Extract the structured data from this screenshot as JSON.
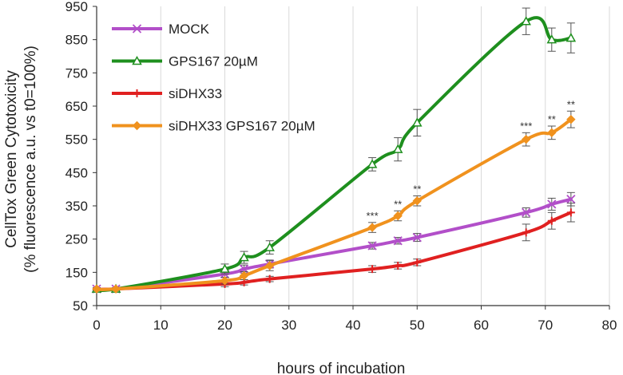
{
  "chart_data": {
    "type": "line",
    "title": "",
    "xlabel": "hours of incubation",
    "ylabel_lines": [
      "CellTox Green Cytotoxicity",
      "(% fluorescence a.u. vs t0=100%)"
    ],
    "xlim": [
      0,
      80
    ],
    "ylim": [
      50,
      950
    ],
    "x_ticks": [
      0,
      10,
      20,
      30,
      40,
      50,
      60,
      70,
      80
    ],
    "y_ticks": [
      50,
      150,
      250,
      350,
      450,
      550,
      650,
      750,
      850,
      950
    ],
    "grid": "vertical",
    "legend": "top-left",
    "series": [
      {
        "name": "MOCK",
        "color": "#b24fc9",
        "marker": "x",
        "points": [
          [
            0,
            100
          ],
          [
            3,
            100
          ],
          [
            20,
            145
          ],
          [
            23,
            160
          ],
          [
            27,
            175
          ],
          [
            43,
            230
          ],
          [
            47,
            245
          ],
          [
            50,
            255
          ],
          [
            67,
            330
          ],
          [
            71,
            355
          ],
          [
            74,
            370
          ]
        ],
        "errors": [
          4,
          4,
          10,
          12,
          12,
          10,
          10,
          12,
          14,
          18,
          20
        ]
      },
      {
        "name": "GPS167 20µM",
        "color": "#1e8f1e",
        "marker": "triangle",
        "points": [
          [
            0,
            100
          ],
          [
            3,
            100
          ],
          [
            20,
            160
          ],
          [
            23,
            195
          ],
          [
            27,
            225
          ],
          [
            43,
            475
          ],
          [
            47,
            520
          ],
          [
            50,
            600
          ],
          [
            67,
            905
          ],
          [
            71,
            850
          ],
          [
            74,
            855
          ]
        ],
        "errors": [
          4,
          4,
          15,
          18,
          20,
          20,
          35,
          40,
          40,
          35,
          45
        ]
      },
      {
        "name": "siDHX33",
        "color": "#e02020",
        "marker": "plus",
        "points": [
          [
            0,
            100
          ],
          [
            3,
            100
          ],
          [
            20,
            115
          ],
          [
            23,
            120
          ],
          [
            27,
            130
          ],
          [
            43,
            160
          ],
          [
            47,
            170
          ],
          [
            50,
            180
          ],
          [
            67,
            270
          ],
          [
            71,
            305
          ],
          [
            74,
            330
          ]
        ],
        "errors": [
          4,
          4,
          8,
          8,
          8,
          10,
          10,
          10,
          25,
          25,
          28
        ]
      },
      {
        "name": "siDHX33 GPS167 20µM",
        "color": "#f0921e",
        "marker": "diamond",
        "points": [
          [
            0,
            100
          ],
          [
            3,
            100
          ],
          [
            20,
            125
          ],
          [
            23,
            140
          ],
          [
            27,
            170
          ],
          [
            43,
            285
          ],
          [
            47,
            320
          ],
          [
            50,
            365
          ],
          [
            67,
            550
          ],
          [
            71,
            570
          ],
          [
            74,
            610
          ]
        ],
        "errors": [
          4,
          4,
          10,
          12,
          15,
          15,
          15,
          15,
          20,
          20,
          25
        ]
      }
    ],
    "significance": [
      {
        "x": 43,
        "y": 285,
        "label": "***"
      },
      {
        "x": 47,
        "y": 320,
        "label": "**"
      },
      {
        "x": 50,
        "y": 365,
        "label": "**"
      },
      {
        "x": 67,
        "y": 550,
        "label": "***"
      },
      {
        "x": 71,
        "y": 570,
        "label": "**"
      },
      {
        "x": 74,
        "y": 610,
        "label": "**"
      }
    ]
  }
}
